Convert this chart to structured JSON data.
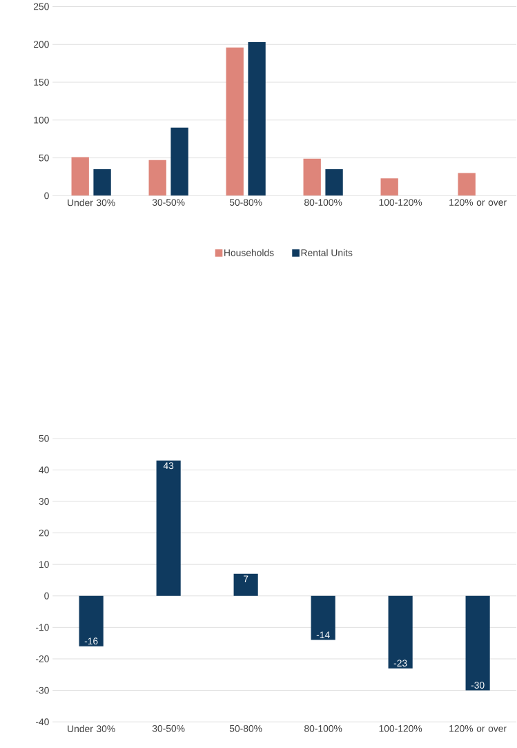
{
  "chart_data": [
    {
      "type": "bar",
      "categories": [
        "Under 30%",
        "30-50%",
        "50-80%",
        "80-100%",
        "100-120%",
        "120% or over"
      ],
      "series": [
        {
          "name": "Households",
          "color": "#de857a",
          "values": [
            51,
            47,
            196,
            49,
            23,
            30
          ]
        },
        {
          "name": "Rental Units",
          "color": "#0f3a5f",
          "values": [
            35,
            90,
            203,
            35,
            0,
            0
          ]
        }
      ],
      "ylim": [
        0,
        250
      ],
      "yticks": [
        0,
        50,
        100,
        150,
        200,
        250
      ],
      "grid": "y",
      "legend": "bottom"
    },
    {
      "type": "bar",
      "categories": [
        "Under 30%",
        "30-50%",
        "50-80%",
        "80-100%",
        "100-120%",
        "120% or over"
      ],
      "series": [
        {
          "color": "#0f3a5f",
          "values": [
            -16,
            43,
            7,
            -14,
            -23,
            -30
          ]
        }
      ],
      "ylim": [
        -40,
        50
      ],
      "yticks": [
        -40,
        -30,
        -20,
        -10,
        0,
        10,
        20,
        30,
        40,
        50
      ],
      "grid": "y",
      "data_labels": true
    }
  ]
}
